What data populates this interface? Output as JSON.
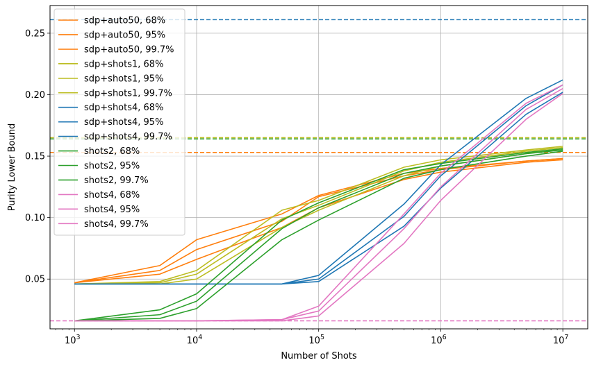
{
  "chart_data": {
    "type": "line",
    "title": "",
    "xlabel": "Number of Shots",
    "ylabel": "Purity Lower Bound",
    "xscale": "log",
    "xlim": [
      630,
      16000000
    ],
    "ylim": [
      0.0095,
      0.2725
    ],
    "x_ticks": [
      {
        "value": 1000,
        "mantissa": "10",
        "exponent": "3"
      },
      {
        "value": 10000,
        "mantissa": "10",
        "exponent": "4"
      },
      {
        "value": 100000,
        "mantissa": "10",
        "exponent": "5"
      },
      {
        "value": 1000000,
        "mantissa": "10",
        "exponent": "6"
      },
      {
        "value": 10000000,
        "mantissa": "10",
        "exponent": "7"
      }
    ],
    "y_ticks": [
      {
        "value": 0.05,
        "label": "0.05"
      },
      {
        "value": 0.1,
        "label": "0.10"
      },
      {
        "value": 0.15,
        "label": "0.15"
      },
      {
        "value": 0.2,
        "label": "0.20"
      },
      {
        "value": 0.25,
        "label": "0.25"
      }
    ],
    "grid": true,
    "legend_position": "upper-left",
    "x": [
      1000,
      5000,
      10000,
      50000,
      100000,
      500000,
      1000000,
      5000000,
      10000000
    ],
    "series": [
      {
        "name": "sdp+auto50, 68%",
        "color": "#ff7f0e",
        "values": [
          0.047,
          0.061,
          0.082,
          0.103,
          0.118,
          0.136,
          0.14,
          0.146,
          0.148
        ]
      },
      {
        "name": "sdp+auto50, 95%",
        "color": "#ff7f0e",
        "values": [
          0.047,
          0.057,
          0.074,
          0.097,
          0.117,
          0.134,
          0.139,
          0.146,
          0.148
        ]
      },
      {
        "name": "sdp+auto50, 99.7%",
        "color": "#ff7f0e",
        "values": [
          0.047,
          0.054,
          0.066,
          0.092,
          0.108,
          0.131,
          0.137,
          0.145,
          0.147
        ]
      },
      {
        "name": "sdp+shots1, 68%",
        "color": "#bcbd22",
        "values": [
          0.046,
          0.048,
          0.057,
          0.106,
          0.114,
          0.141,
          0.147,
          0.155,
          0.158
        ]
      },
      {
        "name": "sdp+shots1, 95%",
        "color": "#bcbd22",
        "values": [
          0.046,
          0.047,
          0.054,
          0.099,
          0.11,
          0.138,
          0.145,
          0.154,
          0.157
        ]
      },
      {
        "name": "sdp+shots1, 99.7%",
        "color": "#bcbd22",
        "values": [
          0.046,
          0.046,
          0.05,
          0.092,
          0.106,
          0.134,
          0.142,
          0.152,
          0.156
        ]
      },
      {
        "name": "sdp+shots4, 68%",
        "color": "#1f77b4",
        "values": [
          0.046,
          0.046,
          0.046,
          0.046,
          0.053,
          0.111,
          0.143,
          0.197,
          0.212
        ]
      },
      {
        "name": "sdp+shots4, 95%",
        "color": "#1f77b4",
        "values": [
          0.046,
          0.046,
          0.046,
          0.046,
          0.05,
          0.101,
          0.134,
          0.191,
          0.208
        ]
      },
      {
        "name": "sdp+shots4, 99.7%",
        "color": "#1f77b4",
        "values": [
          0.046,
          0.046,
          0.046,
          0.046,
          0.048,
          0.093,
          0.124,
          0.184,
          0.202
        ]
      },
      {
        "name": "shots2, 68%",
        "color": "#2ca02c",
        "values": [
          0.016,
          0.025,
          0.038,
          0.098,
          0.112,
          0.139,
          0.144,
          0.153,
          0.156
        ]
      },
      {
        "name": "shots2, 95%",
        "color": "#2ca02c",
        "values": [
          0.016,
          0.021,
          0.032,
          0.091,
          0.108,
          0.136,
          0.142,
          0.152,
          0.155
        ]
      },
      {
        "name": "shots2, 99.7%",
        "color": "#2ca02c",
        "values": [
          0.016,
          0.018,
          0.026,
          0.082,
          0.098,
          0.132,
          0.139,
          0.15,
          0.154
        ]
      },
      {
        "name": "shots4, 68%",
        "color": "#e377c2",
        "values": [
          0.016,
          0.016,
          0.016,
          0.017,
          0.028,
          0.103,
          0.136,
          0.193,
          0.208
        ]
      },
      {
        "name": "shots4, 95%",
        "color": "#e377c2",
        "values": [
          0.016,
          0.016,
          0.016,
          0.017,
          0.024,
          0.091,
          0.125,
          0.188,
          0.205
        ]
      },
      {
        "name": "shots4, 99.7%",
        "color": "#e377c2",
        "values": [
          0.016,
          0.016,
          0.016,
          0.016,
          0.02,
          0.079,
          0.114,
          0.18,
          0.201
        ]
      }
    ],
    "reference_lines": [
      {
        "y": 0.261,
        "color": "#1f77b4",
        "style": "dashed"
      },
      {
        "y": 0.165,
        "color": "#bcbd22",
        "style": "dashed"
      },
      {
        "y": 0.164,
        "color": "#2ca02c",
        "style": "dashed"
      },
      {
        "y": 0.153,
        "color": "#ff7f0e",
        "style": "dashed"
      },
      {
        "y": 0.016,
        "color": "#e377c2",
        "style": "dashed"
      }
    ]
  }
}
